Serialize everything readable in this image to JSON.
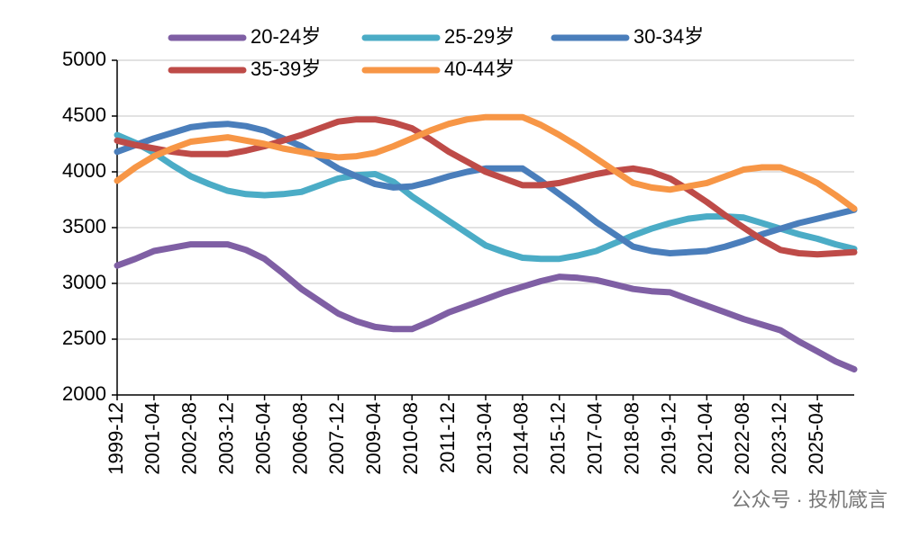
{
  "chart_data": {
    "type": "line",
    "categories": [
      "1999-12",
      null,
      "2001-04",
      null,
      "2002-08",
      null,
      "2003-12",
      null,
      "2005-04",
      null,
      "2006-08",
      null,
      "2007-12",
      null,
      "2009-04",
      null,
      "2010-08",
      null,
      "2011-12",
      null,
      "2013-04",
      null,
      "2014-08",
      null,
      "2015-12",
      null,
      "2017-04",
      null,
      "2018-08",
      null,
      "2019-12",
      null,
      "2021-04",
      null,
      "2022-08",
      null,
      "2023-12",
      null,
      "2025-04",
      null,
      null
    ],
    "series": [
      {
        "name": "20-24岁",
        "color": "#7f5fa4",
        "values": [
          3160,
          3220,
          3290,
          3320,
          3350,
          3350,
          3350,
          3300,
          3220,
          3090,
          2950,
          2840,
          2730,
          2660,
          2610,
          2590,
          2590,
          2660,
          2740,
          2800,
          2860,
          2920,
          2970,
          3020,
          3060,
          3050,
          3030,
          2990,
          2950,
          2930,
          2920,
          2860,
          2800,
          2740,
          2680,
          2630,
          2580,
          2480,
          2390,
          2300,
          2230
        ]
      },
      {
        "name": "25-29岁",
        "color": "#4bacc6",
        "values": [
          4330,
          4260,
          4170,
          4060,
          3960,
          3890,
          3830,
          3800,
          3790,
          3800,
          3820,
          3880,
          3940,
          3970,
          3980,
          3910,
          3780,
          3670,
          3560,
          3450,
          3340,
          3280,
          3230,
          3220,
          3220,
          3250,
          3290,
          3360,
          3430,
          3490,
          3540,
          3580,
          3600,
          3600,
          3590,
          3540,
          3490,
          3440,
          3400,
          3350,
          3310
        ]
      },
      {
        "name": "30-34岁",
        "color": "#4a7ebb",
        "values": [
          4180,
          4240,
          4300,
          4350,
          4400,
          4420,
          4430,
          4410,
          4370,
          4300,
          4230,
          4130,
          4030,
          3960,
          3890,
          3860,
          3870,
          3910,
          3960,
          4000,
          4030,
          4030,
          4030,
          3920,
          3800,
          3680,
          3550,
          3440,
          3330,
          3290,
          3270,
          3280,
          3290,
          3330,
          3380,
          3440,
          3490,
          3540,
          3580,
          3620,
          3660
        ]
      },
      {
        "name": "35-39岁",
        "color": "#be4b48",
        "values": [
          4280,
          4240,
          4210,
          4180,
          4160,
          4160,
          4160,
          4190,
          4230,
          4280,
          4330,
          4390,
          4450,
          4470,
          4470,
          4440,
          4390,
          4290,
          4180,
          4090,
          4000,
          3940,
          3880,
          3880,
          3900,
          3940,
          3980,
          4010,
          4030,
          4000,
          3940,
          3840,
          3730,
          3610,
          3500,
          3390,
          3300,
          3270,
          3260,
          3270,
          3280
        ]
      },
      {
        "name": "40-44岁",
        "color": "#f79646",
        "values": [
          3920,
          4040,
          4140,
          4210,
          4270,
          4290,
          4310,
          4280,
          4250,
          4210,
          4180,
          4150,
          4130,
          4140,
          4170,
          4230,
          4300,
          4370,
          4430,
          4470,
          4490,
          4490,
          4490,
          4420,
          4330,
          4230,
          4120,
          4010,
          3900,
          3860,
          3840,
          3870,
          3900,
          3960,
          4020,
          4040,
          4040,
          3980,
          3900,
          3790,
          3670
        ]
      }
    ],
    "ylim": [
      2000,
      5000
    ],
    "yticks": [
      2000,
      2500,
      3000,
      3500,
      4000,
      4500,
      5000
    ],
    "grid": true,
    "legend": "top"
  },
  "watermark": "公众号 · 投机箴言"
}
